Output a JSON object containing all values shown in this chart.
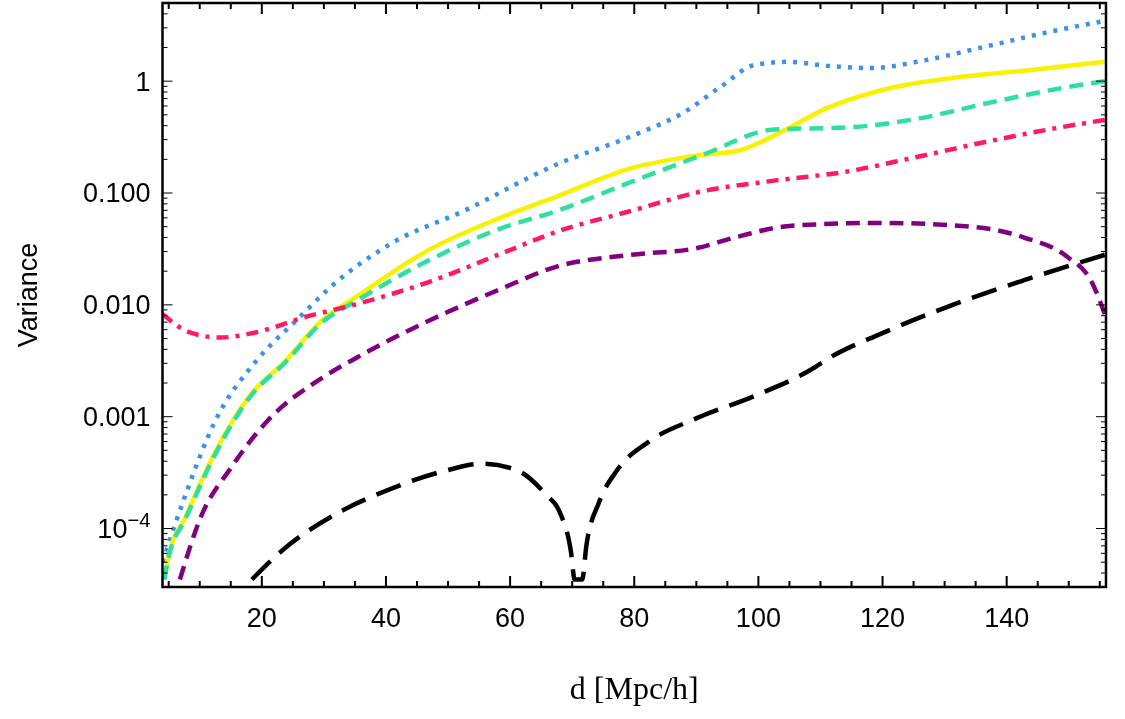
{
  "chart_data": {
    "type": "line",
    "xlabel": "d [Mpc/h]",
    "ylabel": "Variance",
    "log": "y",
    "grid": false,
    "marker": "none",
    "xlim": [
      4,
      156
    ],
    "xticks": [
      {
        "value": 5,
        "label": null
      },
      {
        "value": 10,
        "label": null
      },
      {
        "value": 15,
        "label": null
      },
      20,
      {
        "value": 25,
        "label": null
      },
      {
        "value": 30,
        "label": null
      },
      {
        "value": 35,
        "label": null
      },
      40,
      {
        "value": 45,
        "label": null
      },
      {
        "value": 50,
        "label": null
      },
      {
        "value": 55,
        "label": null
      },
      60,
      {
        "value": 65,
        "label": null
      },
      {
        "value": 70,
        "label": null
      },
      {
        "value": 75,
        "label": null
      },
      80,
      {
        "value": 85,
        "label": null
      },
      {
        "value": 90,
        "label": null
      },
      {
        "value": 95,
        "label": null
      },
      100,
      {
        "value": 105,
        "label": null
      },
      {
        "value": 110,
        "label": null
      },
      {
        "value": 115,
        "label": null
      },
      120,
      {
        "value": 125,
        "label": null
      },
      {
        "value": 130,
        "label": null
      },
      {
        "value": 135,
        "label": null
      },
      140,
      {
        "value": 145,
        "label": null
      },
      {
        "value": 150,
        "label": null
      },
      {
        "value": 155,
        "label": null
      }
    ],
    "ylim": [
      3e-05,
      5
    ],
    "yticks": [
      {
        "value": 4e-05,
        "label": null
      },
      {
        "value": 5e-05,
        "label": null
      },
      {
        "value": 6e-05,
        "label": null
      },
      {
        "value": 7e-05,
        "label": null
      },
      {
        "value": 8e-05,
        "label": null
      },
      {
        "value": 9e-05,
        "label": null
      },
      {
        "value": 0.0001,
        "label": "10$^{−4}$"
      },
      {
        "value": 0.0002,
        "label": null
      },
      {
        "value": 0.0003,
        "label": null
      },
      {
        "value": 0.0004,
        "label": null
      },
      {
        "value": 0.0005,
        "label": null
      },
      {
        "value": 0.0006,
        "label": null
      },
      {
        "value": 0.0007,
        "label": null
      },
      {
        "value": 0.0008,
        "label": null
      },
      {
        "value": 0.0009,
        "label": null
      },
      0.001,
      {
        "value": 0.002,
        "label": null
      },
      {
        "value": 0.003,
        "label": null
      },
      {
        "value": 0.004,
        "label": null
      },
      {
        "value": 0.005,
        "label": null
      },
      {
        "value": 0.006,
        "label": null
      },
      {
        "value": 0.007,
        "label": null
      },
      {
        "value": 0.008,
        "label": null
      },
      {
        "value": 0.009,
        "label": null
      },
      {
        "value": 0.01,
        "label": "0.010"
      },
      {
        "value": 0.02,
        "label": null
      },
      {
        "value": 0.03,
        "label": null
      },
      {
        "value": 0.04,
        "label": null
      },
      {
        "value": 0.05,
        "label": null
      },
      {
        "value": 0.06,
        "label": null
      },
      {
        "value": 0.07,
        "label": null
      },
      {
        "value": 0.08,
        "label": null
      },
      {
        "value": 0.09,
        "label": null
      },
      {
        "value": 0.1,
        "label": "0.100"
      },
      {
        "value": 0.2,
        "label": null
      },
      {
        "value": 0.3,
        "label": null
      },
      {
        "value": 0.4,
        "label": null
      },
      {
        "value": 0.5,
        "label": null
      },
      {
        "value": 0.6,
        "label": null
      },
      {
        "value": 0.7,
        "label": null
      },
      {
        "value": 0.8,
        "label": null
      },
      {
        "value": 0.9,
        "label": null
      },
      1,
      {
        "value": 2,
        "label": null
      },
      {
        "value": 3,
        "label": null
      },
      {
        "value": 4,
        "label": null
      }
    ],
    "series": [
      {
        "color": "#3c91ec",
        "line_style": "dotted",
        "x": [
          4,
          7.7,
          12.3,
          19.2,
          25.5,
          31.3,
          41.1,
          52.5,
          67.5,
          79.4,
          88.1,
          93.9,
          99.5,
          104.9,
          111.1,
          118.5,
          125.5,
          137.1,
          147.4,
          155.1
        ],
        "values": [
          5e-05,
          0.0002,
          0.00087,
          0.0032,
          0.0072,
          0.0148,
          0.036,
          0.069,
          0.18,
          0.32,
          0.53,
          0.89,
          1.4,
          1.49,
          1.37,
          1.31,
          1.49,
          2.07,
          2.8,
          3.4
        ]
      },
      {
        "color": "#f7f200",
        "line_style": "solid",
        "x": [
          4.3,
          4.9,
          7.8,
          12.3,
          18.1,
          23.9,
          29.6,
          35.4,
          46.9,
          58.4,
          67.5,
          79.4,
          89.9,
          96.9,
          103.6,
          111.2,
          119.8,
          131.3,
          142.8,
          155.8
        ],
        "values": [
          3.5e-05,
          5.4e-05,
          0.00013,
          0.00046,
          0.00155,
          0.0032,
          0.0072,
          0.012,
          0.031,
          0.06,
          0.093,
          0.166,
          0.216,
          0.24,
          0.35,
          0.58,
          0.83,
          1.07,
          1.24,
          1.49
        ]
      },
      {
        "color": "#2ee0a0",
        "line_style": "dashed",
        "x": [
          4.3,
          4.9,
          7.8,
          12.3,
          18.1,
          23.9,
          29.6,
          35.4,
          46.9,
          58.4,
          67.5,
          79.4,
          91.1,
          102.5,
          114.1,
          125.5,
          137.1,
          148.5,
          155.8
        ],
        "values": [
          3.5e-05,
          5.3e-05,
          0.000125,
          0.00044,
          0.0015,
          0.0031,
          0.0069,
          0.011,
          0.025,
          0.048,
          0.069,
          0.125,
          0.22,
          0.37,
          0.385,
          0.46,
          0.64,
          0.86,
          1.0
        ]
      },
      {
        "color": "#ff1a66",
        "line_style": "dashdot",
        "x": [
          4,
          8.3,
          13.2,
          19.2,
          26.7,
          35.4,
          46.9,
          58.4,
          67.5,
          79.4,
          91.1,
          102.5,
          114.1,
          125.5,
          137.1,
          148.5,
          155.8
        ],
        "values": [
          0.0083,
          0.0057,
          0.0051,
          0.0057,
          0.0077,
          0.0102,
          0.016,
          0.0285,
          0.045,
          0.069,
          0.104,
          0.129,
          0.155,
          0.21,
          0.29,
          0.385,
          0.45
        ]
      },
      {
        "color": "#800080",
        "line_style": "dashed",
        "x": [
          6.8,
          10.0,
          15.2,
          21.0,
          29.6,
          35.4,
          46.9,
          58.4,
          67.5,
          79.4,
          89.9,
          96.9,
          105.4,
          119.8,
          134.3,
          142.8,
          149.7,
          153.7,
          155.8
        ],
        "values": [
          3.5e-05,
          0.00012,
          0.00036,
          0.00093,
          0.0022,
          0.0034,
          0.0072,
          0.0138,
          0.022,
          0.028,
          0.032,
          0.041,
          0.051,
          0.054,
          0.05,
          0.04,
          0.027,
          0.016,
          0.0083
        ]
      },
      {
        "color": "#000000",
        "line_style": "longdashed",
        "x": [
          18.4,
          23.9,
          32.5,
          41.1,
          49.7,
          55.5,
          61.2,
          65.8,
          68.0,
          69.8,
          70.4,
          71.6,
          72.3,
          74.3,
          77.2,
          82.4,
          89.9,
          99.6,
          108.3,
          111.6,
          119.7,
          131.3,
          142.8,
          155.8
        ],
        "values": [
          3.5e-05,
          6.8e-05,
          0.00014,
          0.00023,
          0.00033,
          0.00038,
          0.00033,
          0.0002,
          0.00014,
          6.2e-05,
          3.5e-05,
          3.5e-05,
          7.1e-05,
          0.00017,
          0.00033,
          0.0006,
          0.00096,
          0.00155,
          0.0026,
          0.0034,
          0.0055,
          0.01,
          0.0166,
          0.028
        ]
      }
    ]
  }
}
